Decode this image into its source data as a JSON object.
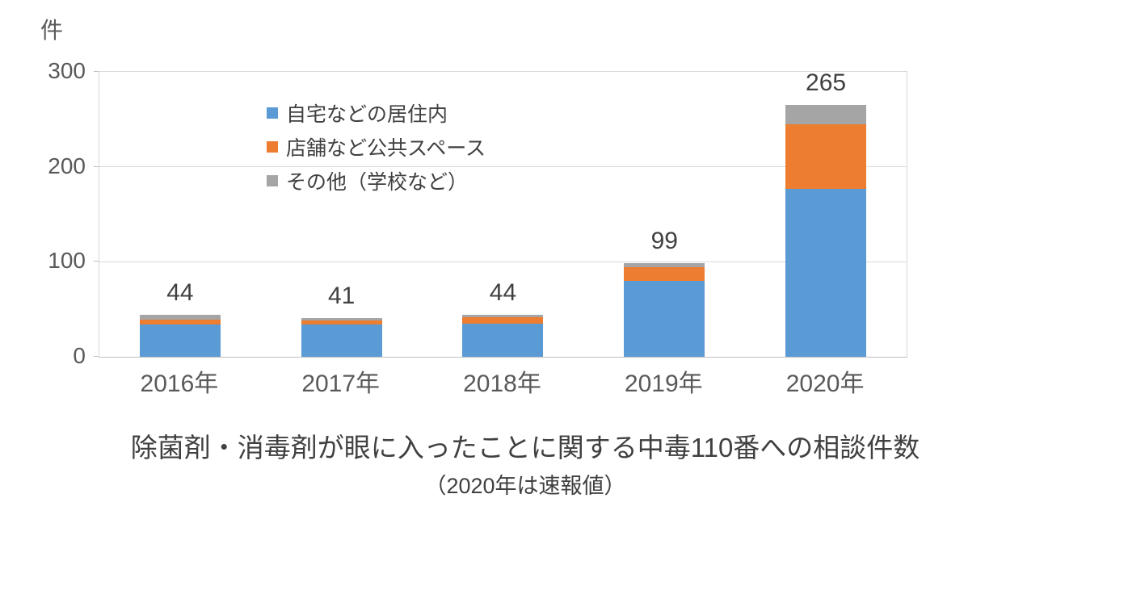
{
  "unit_label": "件",
  "title": "除菌剤・消毒剤が眼に入ったことに関する中毒110番への相談件数",
  "subtitle": "（2020年は速報値）",
  "colors": {
    "series_blue": "#5B9BD5",
    "series_orange": "#ED7D31",
    "series_gray": "#A5A5A5",
    "gridline": "#D9D9D9",
    "axis_line": "#BFBFBF",
    "tick_text": "#595959",
    "label_text": "#404040"
  },
  "chart_data": {
    "type": "bar",
    "stacked": true,
    "title": "除菌剤・消毒剤が眼に入ったことに関する中毒110番への相談件数",
    "subtitle": "（2020年は速報値）",
    "ylabel": "件",
    "xlabel": "",
    "ylim": [
      0,
      300
    ],
    "yticks": [
      0,
      100,
      200,
      300
    ],
    "grid": true,
    "legend_position": "inside-top-left",
    "categories": [
      "2016年",
      "2017年",
      "2018年",
      "2019年",
      "2020年"
    ],
    "series": [
      {
        "name": "自宅などの居住内",
        "color": "#5B9BD5",
        "values": [
          34,
          34,
          35,
          80,
          177
        ]
      },
      {
        "name": "店舗など公共スペース",
        "color": "#ED7D31",
        "values": [
          5,
          4,
          7,
          14,
          68
        ]
      },
      {
        "name": "その他（学校など）",
        "color": "#A5A5A5",
        "values": [
          5,
          3,
          2,
          5,
          20
        ]
      }
    ],
    "totals": [
      44,
      41,
      44,
      99,
      265
    ]
  }
}
